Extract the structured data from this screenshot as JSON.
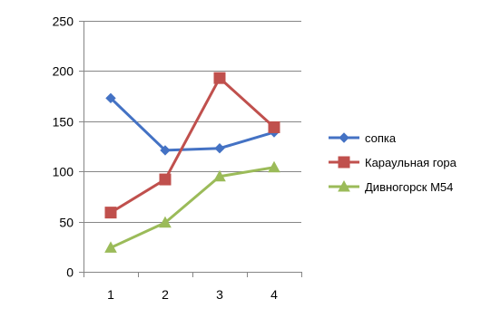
{
  "chart_data": {
    "type": "line",
    "title": "",
    "xlabel": "",
    "ylabel": "",
    "categories": [
      "1",
      "2",
      "3",
      "4"
    ],
    "ylim": [
      0,
      250
    ],
    "yticks": [
      0,
      50,
      100,
      150,
      200,
      250
    ],
    "grid": true,
    "legend_position": "right",
    "series": [
      {
        "name": "сопка",
        "values": [
          173,
          121,
          123,
          139
        ],
        "color": "#4472C4",
        "marker": "diamond"
      },
      {
        "name": "Караульная гора",
        "values": [
          59,
          92,
          193,
          144
        ],
        "color": "#C0504D",
        "marker": "square"
      },
      {
        "name": "Дивногорск М54",
        "values": [
          24,
          49,
          95,
          104
        ],
        "color": "#9BBB59",
        "marker": "triangle"
      }
    ]
  }
}
